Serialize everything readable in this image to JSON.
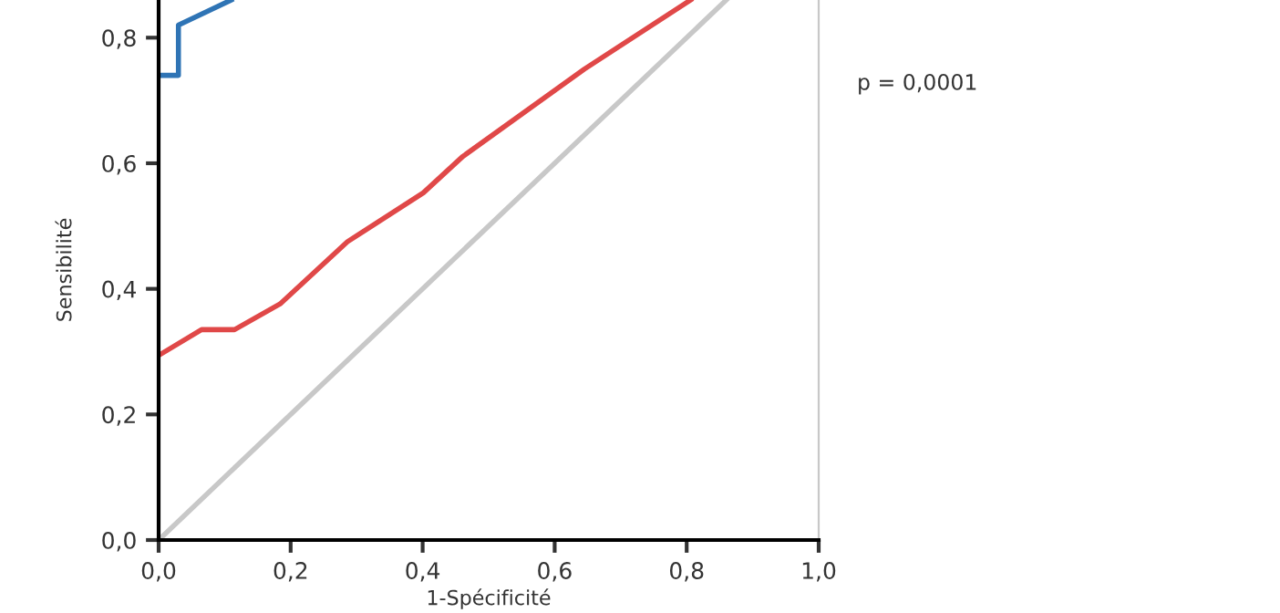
{
  "chart_data": {
    "type": "line",
    "xlabel": "1-Spécificité",
    "ylabel": "Sensibilité",
    "annotations": [
      "p = 0,0001"
    ],
    "series": [
      {
        "color": "#2f74b5",
        "x": [
          0,
          0.03,
          0.03,
          0.11
        ],
        "values": [
          0.74,
          0.74,
          0.82,
          0.86
        ]
      },
      {
        "color": "#e04848",
        "x": [
          0,
          0.065,
          0.115,
          0.184,
          0.286,
          0.401,
          0.461,
          0.645,
          0.806
        ],
        "values": [
          0.294,
          0.335,
          0.335,
          0.376,
          0.475,
          0.553,
          0.611,
          0.75,
          0.86
        ]
      },
      {
        "color": "#c8c8c8",
        "x": [
          0,
          0.86
        ],
        "values": [
          0,
          0.86
        ]
      }
    ],
    "xlim": [
      0,
      1
    ],
    "ylim": [
      0,
      0.86
    ],
    "xticks": [
      {
        "value": 0,
        "label": "0,0"
      },
      {
        "value": 0.2,
        "label": "0,2"
      },
      {
        "value": 0.4,
        "label": "0,4"
      },
      {
        "value": 0.6,
        "label": "0,6"
      },
      {
        "value": 0.8,
        "label": "0,8"
      },
      {
        "value": 1,
        "label": "1,0"
      }
    ],
    "yticks": [
      {
        "value": 0,
        "label": "0,0"
      },
      {
        "value": 0.2,
        "label": "0,2"
      },
      {
        "value": 0.4,
        "label": "0,4"
      },
      {
        "value": 0.6,
        "label": "0,6"
      },
      {
        "value": 0.8,
        "label": "0,8"
      }
    ],
    "grid": false,
    "legend": false,
    "marker": "none",
    "line_style": "solid"
  }
}
